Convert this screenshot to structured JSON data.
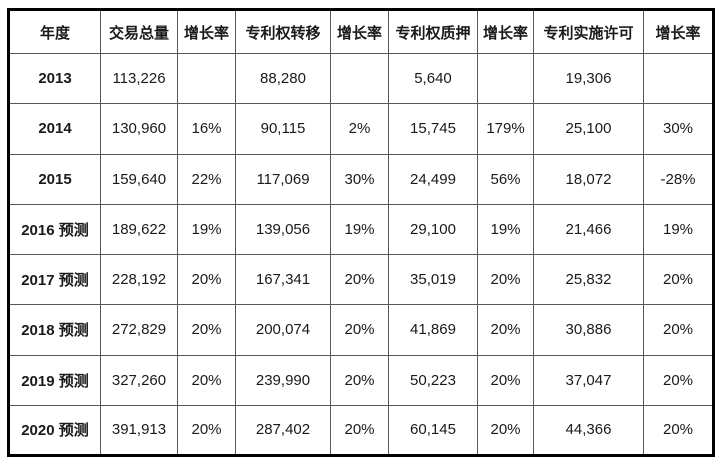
{
  "colors": {
    "background": "#ffffff",
    "outer_border": "#000000",
    "inner_border": "#595959",
    "text": "#1a1a1a"
  },
  "chart_data": {
    "type": "table",
    "title": "",
    "columns": [
      "年度",
      "交易总量",
      "增长率",
      "专利权转移",
      "增长率",
      "专利权质押",
      "增长率",
      "专利实施许可",
      "增长率"
    ],
    "rows": [
      [
        "2013",
        "113,226",
        "",
        "88,280",
        "",
        "5,640",
        "",
        "19,306",
        ""
      ],
      [
        "2014",
        "130,960",
        "16%",
        "90,115",
        "2%",
        "15,745",
        "179%",
        "25,100",
        "30%"
      ],
      [
        "2015",
        "159,640",
        "22%",
        "117,069",
        "30%",
        "24,499",
        "56%",
        "18,072",
        "-28%"
      ],
      [
        "2016 预测",
        "189,622",
        "19%",
        "139,056",
        "19%",
        "29,100",
        "19%",
        "21,466",
        "19%"
      ],
      [
        "2017 预测",
        "228,192",
        "20%",
        "167,341",
        "20%",
        "35,019",
        "20%",
        "25,832",
        "20%"
      ],
      [
        "2018 预测",
        "272,829",
        "20%",
        "200,074",
        "20%",
        "41,869",
        "20%",
        "30,886",
        "20%"
      ],
      [
        "2019 预测",
        "327,260",
        "20%",
        "239,990",
        "20%",
        "50,223",
        "20%",
        "37,047",
        "20%"
      ],
      [
        "2020 预测",
        "391,913",
        "20%",
        "287,402",
        "20%",
        "60,145",
        "20%",
        "44,366",
        "20%"
      ]
    ]
  }
}
